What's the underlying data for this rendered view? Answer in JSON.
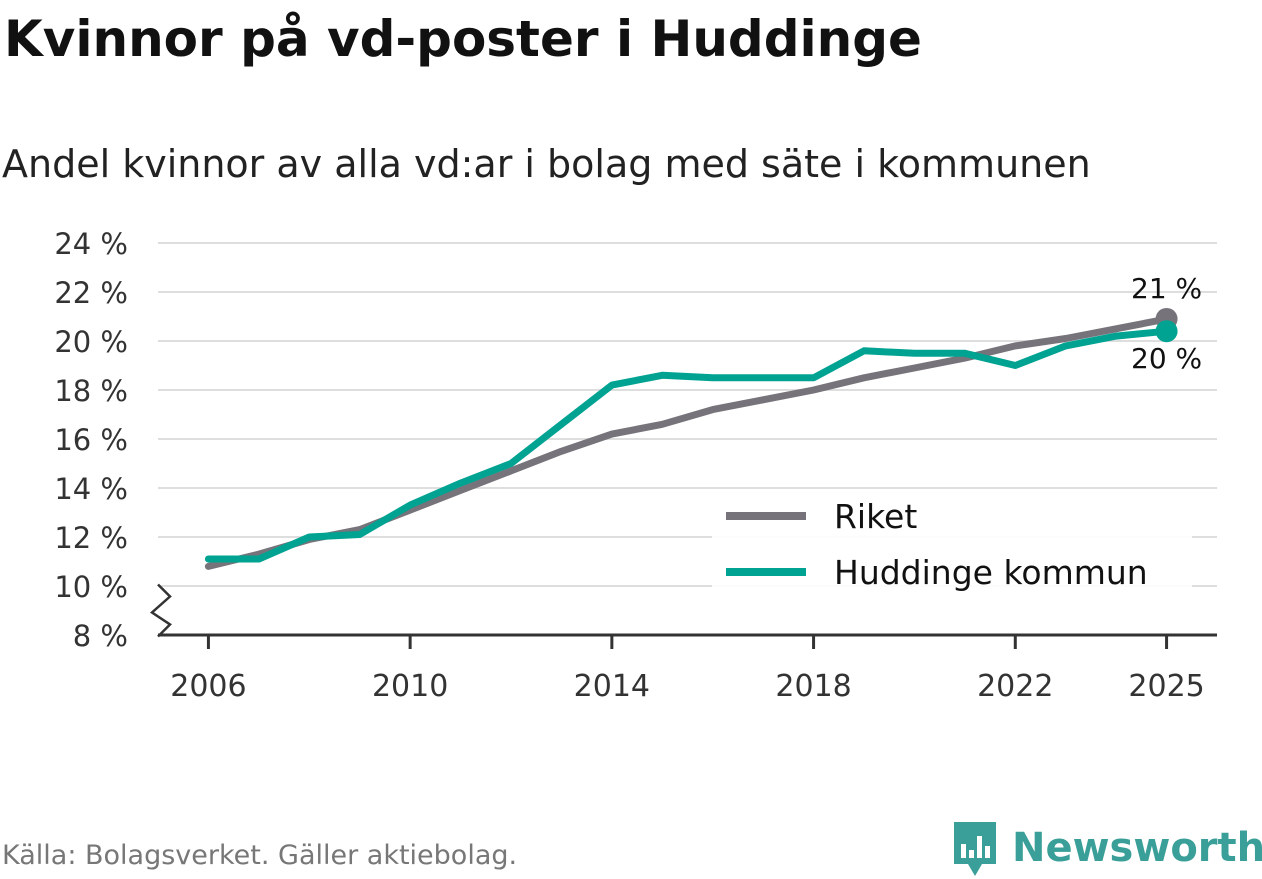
{
  "title": "Kvinnor på vd-poster i Huddinge",
  "subtitle": "Andel kvinnor av alla vd:ar i bolag med säte i kommunen",
  "source": "Källa: Bolagsverket. Gäller aktiebolag.",
  "brand": "Newsworthy",
  "colors": {
    "riket": "#76737a",
    "huddinge": "#00a392",
    "brand": "#3a9f98"
  },
  "chart_data": {
    "type": "line",
    "title": "Kvinnor på vd-poster i Huddinge",
    "subtitle": "Andel kvinnor av alla vd:ar i bolag med säte i kommunen",
    "xlabel": "",
    "ylabel": "",
    "ylim": [
      8,
      24
    ],
    "y_axis_break": true,
    "y_ticks": [
      {
        "value": 8,
        "label": "8 %"
      },
      {
        "value": 10,
        "label": "10 %"
      },
      {
        "value": 12,
        "label": "12 %"
      },
      {
        "value": 14,
        "label": "14 %"
      },
      {
        "value": 16,
        "label": "16 %"
      },
      {
        "value": 18,
        "label": "18 %"
      },
      {
        "value": 20,
        "label": "20 %"
      },
      {
        "value": 22,
        "label": "22 %"
      },
      {
        "value": 24,
        "label": "24 %"
      }
    ],
    "xlim": [
      2005,
      2026
    ],
    "x_ticks": [
      {
        "value": 2006,
        "label": "2006"
      },
      {
        "value": 2010,
        "label": "2010"
      },
      {
        "value": 2014,
        "label": "2014"
      },
      {
        "value": 2018,
        "label": "2018"
      },
      {
        "value": 2022,
        "label": "2022"
      },
      {
        "value": 2025,
        "label": "2025"
      }
    ],
    "grid": true,
    "legend_position": "bottom-right",
    "x": [
      2006,
      2007,
      2008,
      2009,
      2010,
      2011,
      2012,
      2013,
      2014,
      2015,
      2016,
      2017,
      2018,
      2019,
      2020,
      2021,
      2022,
      2023,
      2024,
      2025
    ],
    "series": [
      {
        "key": "riket",
        "name": "Riket",
        "color": "#76737a",
        "values": [
          10.8,
          11.3,
          11.9,
          12.3,
          13.1,
          13.9,
          14.7,
          15.5,
          16.2,
          16.6,
          17.2,
          17.6,
          18.0,
          18.5,
          18.9,
          19.3,
          19.8,
          20.1,
          20.5,
          20.9
        ],
        "end_label": "21 %"
      },
      {
        "key": "huddinge",
        "name": "Huddinge kommun",
        "color": "#00a392",
        "values": [
          11.1,
          11.1,
          12.0,
          12.1,
          13.3,
          14.2,
          15.0,
          16.6,
          18.2,
          18.6,
          18.5,
          18.5,
          18.5,
          19.6,
          19.5,
          19.5,
          19.0,
          19.8,
          20.2,
          20.4
        ],
        "end_label": "20 %"
      }
    ]
  }
}
